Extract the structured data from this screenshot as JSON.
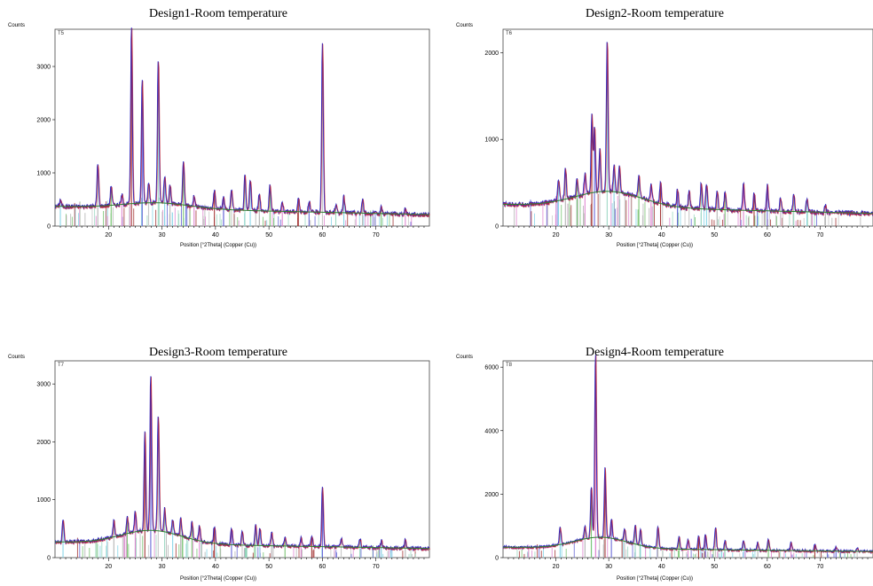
{
  "chart_data": [
    {
      "type": "line",
      "title": "Design1-Room temperature",
      "sample_label": "T5",
      "ylabel": "Counts",
      "xlabel": "Position [°2Theta] (Copper (Cu))",
      "xlim": [
        10,
        80
      ],
      "ylim": [
        0,
        3700
      ],
      "xticks": [
        20,
        30,
        40,
        50,
        60,
        70
      ],
      "yticks": [
        0,
        1000,
        2000,
        3000
      ],
      "baseline": 370,
      "hump": {
        "center": 29,
        "height": 110,
        "width": 9
      },
      "peaks": [
        [
          11,
          130
        ],
        [
          18,
          800
        ],
        [
          20.5,
          380
        ],
        [
          22.5,
          180
        ],
        [
          24.3,
          3300
        ],
        [
          26.3,
          2300
        ],
        [
          27.5,
          400
        ],
        [
          29.3,
          2700
        ],
        [
          30.5,
          500
        ],
        [
          31.5,
          350
        ],
        [
          34,
          850
        ],
        [
          36,
          200
        ],
        [
          39.8,
          350
        ],
        [
          41.5,
          250
        ],
        [
          43,
          400
        ],
        [
          45.5,
          650
        ],
        [
          46.5,
          600
        ],
        [
          48.2,
          350
        ],
        [
          50.2,
          500
        ],
        [
          52.5,
          180
        ],
        [
          55.5,
          260
        ],
        [
          57.5,
          220
        ],
        [
          60,
          3200
        ],
        [
          62.5,
          160
        ],
        [
          64,
          300
        ],
        [
          67.5,
          260
        ],
        [
          71,
          120
        ],
        [
          75.5,
          90
        ]
      ],
      "colors": {
        "line": "#2b2bc8",
        "fit": "#d02020",
        "background": "#2e7d32"
      }
    },
    {
      "type": "line",
      "title": "Design2-Room temperature",
      "sample_label": "T6",
      "ylabel": "Counts",
      "xlabel": "Position [°2Theta] (Copper (Cu))",
      "xlim": [
        10,
        80
      ],
      "ylim": [
        0,
        2270
      ],
      "xticks": [
        20,
        30,
        40,
        50,
        60,
        70
      ],
      "yticks": [
        0,
        1000,
        2000
      ],
      "baseline": 250,
      "hump": {
        "center": 30,
        "height": 180,
        "width": 9
      },
      "peaks": [
        [
          20.5,
          250
        ],
        [
          21.8,
          350
        ],
        [
          24,
          200
        ],
        [
          25.5,
          250
        ],
        [
          26.8,
          900
        ],
        [
          27.3,
          750
        ],
        [
          28.3,
          500
        ],
        [
          29.7,
          1750
        ],
        [
          31,
          300
        ],
        [
          32,
          300
        ],
        [
          35.7,
          280
        ],
        [
          38,
          200
        ],
        [
          39.8,
          250
        ],
        [
          43,
          200
        ],
        [
          45.2,
          200
        ],
        [
          47.5,
          300
        ],
        [
          48.5,
          300
        ],
        [
          50.5,
          220
        ],
        [
          52,
          200
        ],
        [
          55.5,
          300
        ],
        [
          57.5,
          200
        ],
        [
          60,
          300
        ],
        [
          62.5,
          150
        ],
        [
          65,
          200
        ],
        [
          67.5,
          150
        ],
        [
          71,
          80
        ]
      ],
      "colors": {
        "line": "#2b2bc8",
        "fit": "#d02020",
        "background": "#2e7d32"
      }
    },
    {
      "type": "line",
      "title": "Design3-Room temperature",
      "sample_label": "T7",
      "ylabel": "Counts",
      "xlabel": "Position [°2Theta] (Copper (Cu))",
      "xlim": [
        10,
        80
      ],
      "ylim": [
        0,
        3400
      ],
      "xticks": [
        20,
        30,
        40,
        50,
        60,
        70
      ],
      "yticks": [
        0,
        1000,
        2000,
        3000
      ],
      "baseline": 270,
      "hump": {
        "center": 28,
        "height": 230,
        "width": 8
      },
      "peaks": [
        [
          11.5,
          400
        ],
        [
          21,
          300
        ],
        [
          23.5,
          300
        ],
        [
          25,
          350
        ],
        [
          26.8,
          1700
        ],
        [
          27.9,
          2700
        ],
        [
          29.3,
          2000
        ],
        [
          30.5,
          400
        ],
        [
          32,
          250
        ],
        [
          33.5,
          300
        ],
        [
          35.6,
          300
        ],
        [
          37,
          250
        ],
        [
          39.8,
          300
        ],
        [
          43,
          300
        ],
        [
          45,
          250
        ],
        [
          47.5,
          350
        ],
        [
          48.3,
          300
        ],
        [
          50.5,
          250
        ],
        [
          53,
          150
        ],
        [
          56,
          150
        ],
        [
          58,
          200
        ],
        [
          60,
          1050
        ],
        [
          63.5,
          150
        ],
        [
          67,
          150
        ],
        [
          71,
          120
        ],
        [
          75.5,
          150
        ]
      ],
      "colors": {
        "line": "#2b2bc8",
        "fit": "#d02020",
        "background": "#2e7d32"
      }
    },
    {
      "type": "line",
      "title": "Design4-Room temperature",
      "sample_label": "T8",
      "ylabel": "Counts",
      "xlabel": "Position [°2Theta] (Copper (Cu))",
      "xlim": [
        10,
        80
      ],
      "ylim": [
        0,
        6200
      ],
      "xticks": [
        20,
        30,
        40,
        50,
        60,
        70
      ],
      "yticks": [
        0,
        2000,
        4000,
        6000
      ],
      "baseline": 330,
      "hump": {
        "center": 28.5,
        "height": 350,
        "width": 7
      },
      "peaks": [
        [
          20.8,
          550
        ],
        [
          25.5,
          400
        ],
        [
          26.7,
          1600
        ],
        [
          27.5,
          5800
        ],
        [
          29.3,
          2200
        ],
        [
          30.5,
          600
        ],
        [
          33,
          400
        ],
        [
          35,
          600
        ],
        [
          36,
          500
        ],
        [
          39.3,
          700
        ],
        [
          43.3,
          400
        ],
        [
          45,
          300
        ],
        [
          47,
          450
        ],
        [
          48.3,
          500
        ],
        [
          50.2,
          700
        ],
        [
          52,
          300
        ],
        [
          55.5,
          300
        ],
        [
          58.2,
          250
        ],
        [
          60.2,
          350
        ],
        [
          64.5,
          250
        ],
        [
          69,
          200
        ],
        [
          73,
          150
        ],
        [
          77,
          120
        ]
      ],
      "colors": {
        "line": "#2b2bc8",
        "fit": "#d02020",
        "background": "#2e7d32"
      }
    }
  ]
}
